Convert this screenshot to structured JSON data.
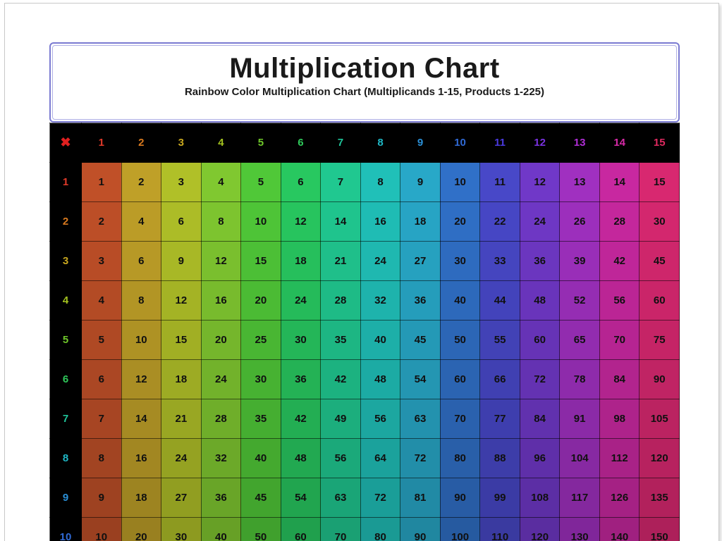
{
  "title": "Multiplication Chart",
  "subtitle": "Rainbow Color Multiplication Chart (Multiplicands 1-15, Products 1-225)",
  "corner_symbol": "✖",
  "chart": {
    "type": "table",
    "size": 15,
    "visible_rows": 9,
    "cell_font_size": 15,
    "cell_font_weight": 700,
    "cell_text_color": "#101010",
    "border_color": "rgba(0,0,0,0.55)",
    "header_bg": "#000000",
    "corner_color": "#e02020",
    "header_colors": [
      "#e03a2a",
      "#d97a1f",
      "#c9a81f",
      "#a3c21f",
      "#6fc72a",
      "#2fc85a",
      "#1fc49a",
      "#1fb8c6",
      "#2a8fd6",
      "#306ad6",
      "#4a3adf",
      "#7a32e0",
      "#b02ed6",
      "#d82aa8",
      "#e02a60"
    ],
    "headers": [
      "1",
      "2",
      "3",
      "4",
      "5",
      "6",
      "7",
      "8",
      "9",
      "10",
      "11",
      "12",
      "13",
      "14",
      "15"
    ],
    "cell_colors_by_column": [
      "#c05028",
      "#bfa028",
      "#b0c028",
      "#80c830",
      "#50c838",
      "#28c860",
      "#20c890",
      "#20c0b8",
      "#28a8c8",
      "#3070c8",
      "#4848c8",
      "#7038c8",
      "#a030c0",
      "#c828a0",
      "#d82870"
    ],
    "row_shade_steps": 0.022
  }
}
